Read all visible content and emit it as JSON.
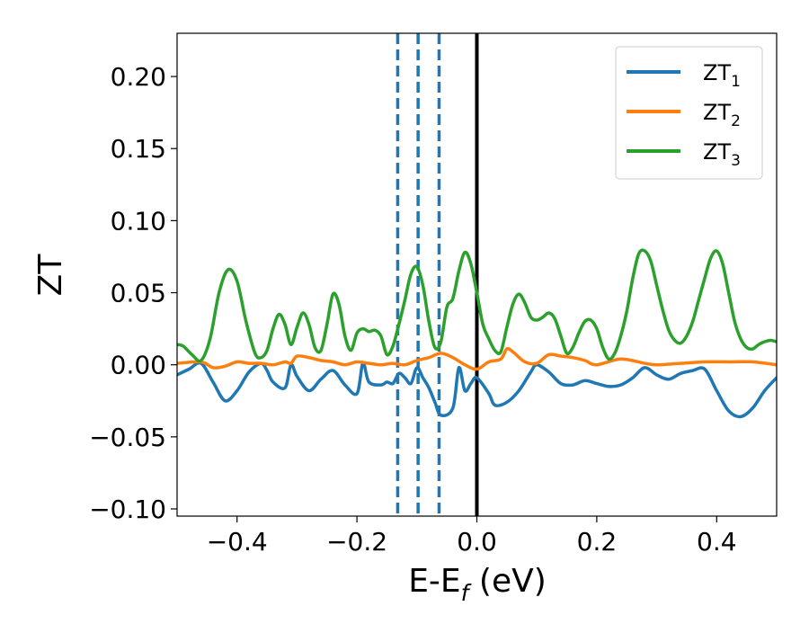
{
  "chart_data": {
    "type": "line",
    "xlabel": "E-E",
    "xlabel_sub": "f",
    "xlabel_unit": " (eV)",
    "ylabel": "ZT",
    "xlim": [
      -0.5,
      0.5
    ],
    "ylim": [
      -0.105,
      0.23
    ],
    "xticks": [
      -0.4,
      -0.2,
      0.0,
      0.2,
      0.4
    ],
    "xtick_labels": [
      "−0.4",
      "−0.2",
      "0.0",
      "0.2",
      "0.4"
    ],
    "yticks": [
      -0.1,
      -0.05,
      0.0,
      0.05,
      0.1,
      0.15,
      0.2
    ],
    "ytick_labels": [
      "−0.10",
      "−0.05",
      "0.00",
      "0.05",
      "0.10",
      "0.15",
      "0.20"
    ],
    "grid": false,
    "legend_position": "top-right",
    "vlines": [
      {
        "x": -0.132,
        "style": "dashed",
        "color": "#1f77b4"
      },
      {
        "x": -0.098,
        "style": "dashed",
        "color": "#1f77b4"
      },
      {
        "x": -0.063,
        "style": "dashed",
        "color": "#1f77b4"
      },
      {
        "x": 0.0,
        "style": "solid",
        "color": "#000000"
      }
    ],
    "series": [
      {
        "name": "ZT",
        "name_sub": "1",
        "color": "#1f77b4",
        "x": [
          -0.5,
          -0.48,
          -0.46,
          -0.44,
          -0.42,
          -0.4,
          -0.38,
          -0.36,
          -0.35,
          -0.34,
          -0.32,
          -0.31,
          -0.3,
          -0.28,
          -0.26,
          -0.24,
          -0.22,
          -0.2,
          -0.19,
          -0.18,
          -0.16,
          -0.15,
          -0.14,
          -0.13,
          -0.12,
          -0.11,
          -0.1,
          -0.09,
          -0.08,
          -0.07,
          -0.06,
          -0.04,
          -0.03,
          -0.02,
          -0.01,
          0.0,
          0.02,
          0.03,
          0.05,
          0.07,
          0.09,
          0.1,
          0.12,
          0.14,
          0.16,
          0.18,
          0.2,
          0.22,
          0.24,
          0.26,
          0.28,
          0.3,
          0.32,
          0.34,
          0.36,
          0.38,
          0.4,
          0.42,
          0.44,
          0.46,
          0.48,
          0.5
        ],
        "y": [
          -0.007,
          -0.003,
          0.001,
          -0.012,
          -0.025,
          -0.018,
          -0.005,
          0.001,
          -0.004,
          -0.012,
          -0.016,
          0.0,
          -0.008,
          -0.018,
          -0.01,
          -0.004,
          -0.014,
          -0.02,
          0.001,
          -0.012,
          -0.014,
          -0.012,
          -0.013,
          -0.006,
          -0.009,
          -0.013,
          -0.002,
          -0.009,
          -0.016,
          -0.026,
          -0.035,
          -0.03,
          -0.002,
          -0.018,
          -0.013,
          -0.009,
          -0.02,
          -0.028,
          -0.026,
          -0.018,
          -0.005,
          0.0,
          -0.005,
          -0.013,
          -0.014,
          -0.011,
          -0.013,
          -0.015,
          -0.014,
          -0.009,
          -0.002,
          -0.007,
          -0.01,
          -0.006,
          -0.004,
          -0.003,
          -0.018,
          -0.032,
          -0.036,
          -0.03,
          -0.018,
          -0.009
        ]
      },
      {
        "name": "ZT",
        "name_sub": "2",
        "color": "#ff7f0e",
        "x": [
          -0.5,
          -0.46,
          -0.44,
          -0.42,
          -0.4,
          -0.38,
          -0.36,
          -0.34,
          -0.32,
          -0.31,
          -0.3,
          -0.28,
          -0.26,
          -0.24,
          -0.22,
          -0.2,
          -0.18,
          -0.16,
          -0.14,
          -0.12,
          -0.1,
          -0.08,
          -0.06,
          -0.04,
          -0.02,
          0.0,
          0.02,
          0.04,
          0.05,
          0.06,
          0.08,
          0.1,
          0.12,
          0.14,
          0.16,
          0.18,
          0.2,
          0.24,
          0.28,
          0.3,
          0.34,
          0.38,
          0.42,
          0.46,
          0.5
        ],
        "y": [
          0.001,
          0.002,
          -0.002,
          -0.001,
          0.002,
          0.001,
          0.001,
          0.0,
          0.002,
          0.001,
          0.006,
          0.005,
          0.003,
          0.002,
          0.0,
          0.002,
          0.001,
          0.0,
          0.001,
          0.0,
          0.003,
          0.005,
          0.008,
          0.005,
          0.0,
          -0.003,
          0.002,
          0.004,
          0.011,
          0.009,
          0.002,
          0.001,
          0.007,
          0.006,
          0.005,
          0.003,
          0.0,
          0.004,
          0.001,
          0.0,
          0.001,
          0.002,
          0.002,
          0.002,
          0.0
        ]
      },
      {
        "name": "ZT",
        "name_sub": "3",
        "color": "#2ca02c",
        "x": [
          -0.5,
          -0.49,
          -0.475,
          -0.46,
          -0.445,
          -0.43,
          -0.415,
          -0.4,
          -0.385,
          -0.37,
          -0.36,
          -0.35,
          -0.34,
          -0.33,
          -0.32,
          -0.31,
          -0.3,
          -0.29,
          -0.28,
          -0.27,
          -0.26,
          -0.25,
          -0.24,
          -0.23,
          -0.22,
          -0.21,
          -0.2,
          -0.19,
          -0.18,
          -0.17,
          -0.16,
          -0.15,
          -0.14,
          -0.13,
          -0.12,
          -0.11,
          -0.1,
          -0.09,
          -0.08,
          -0.07,
          -0.06,
          -0.05,
          -0.04,
          -0.03,
          -0.02,
          -0.01,
          0.0,
          0.01,
          0.02,
          0.03,
          0.04,
          0.05,
          0.06,
          0.07,
          0.08,
          0.09,
          0.1,
          0.11,
          0.12,
          0.13,
          0.14,
          0.15,
          0.16,
          0.17,
          0.18,
          0.19,
          0.2,
          0.21,
          0.22,
          0.23,
          0.24,
          0.25,
          0.26,
          0.27,
          0.28,
          0.29,
          0.3,
          0.31,
          0.32,
          0.33,
          0.34,
          0.35,
          0.36,
          0.37,
          0.38,
          0.39,
          0.4,
          0.41,
          0.42,
          0.43,
          0.44,
          0.45,
          0.46,
          0.47,
          0.48,
          0.49,
          0.5
        ],
        "y": [
          0.014,
          0.013,
          0.007,
          0.003,
          0.018,
          0.05,
          0.066,
          0.058,
          0.03,
          0.008,
          0.005,
          0.01,
          0.025,
          0.035,
          0.028,
          0.014,
          0.026,
          0.036,
          0.028,
          0.012,
          0.01,
          0.028,
          0.049,
          0.042,
          0.02,
          0.01,
          0.022,
          0.025,
          0.023,
          0.024,
          0.02,
          0.007,
          0.013,
          0.028,
          0.045,
          0.063,
          0.068,
          0.055,
          0.03,
          0.012,
          0.016,
          0.04,
          0.046,
          0.065,
          0.078,
          0.07,
          0.05,
          0.028,
          0.018,
          0.01,
          0.009,
          0.026,
          0.042,
          0.049,
          0.043,
          0.033,
          0.031,
          0.033,
          0.036,
          0.032,
          0.02,
          0.008,
          0.012,
          0.022,
          0.03,
          0.031,
          0.025,
          0.012,
          0.004,
          0.008,
          0.02,
          0.037,
          0.06,
          0.077,
          0.079,
          0.072,
          0.055,
          0.038,
          0.024,
          0.017,
          0.015,
          0.02,
          0.03,
          0.045,
          0.06,
          0.074,
          0.079,
          0.07,
          0.05,
          0.03,
          0.018,
          0.012,
          0.011,
          0.014,
          0.016,
          0.017,
          0.016
        ]
      }
    ]
  }
}
